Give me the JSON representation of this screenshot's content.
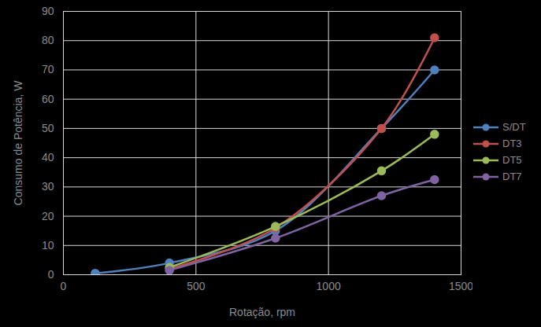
{
  "chart_data": {
    "type": "line",
    "x_label": "Rotação, rpm",
    "y_label": "Consumo de Potência, W",
    "x": [
      120,
      400,
      800,
      1200,
      1400
    ],
    "series": [
      {
        "name": "S/DT",
        "color": "#4f81bd",
        "values": [
          0.5,
          4,
          15,
          50,
          70
        ]
      },
      {
        "name": "DT3",
        "color": "#c0504d",
        "values": [
          null,
          2,
          16,
          50,
          81
        ]
      },
      {
        "name": "DT5",
        "color": "#9bbb59",
        "values": [
          null,
          2.5,
          16.5,
          35.5,
          48
        ]
      },
      {
        "name": "DT7",
        "color": "#8064a2",
        "values": [
          null,
          1.5,
          12.5,
          27,
          32.5
        ]
      }
    ],
    "xlim": [
      0,
      1500
    ],
    "xticks": [
      0,
      500,
      1000,
      1500
    ],
    "ylim": [
      0,
      90
    ],
    "yticks": [
      0,
      10,
      20,
      30,
      40,
      50,
      60,
      70,
      80,
      90
    ],
    "grid": true,
    "legend": "right",
    "marker": "circle",
    "line_style": "smooth"
  }
}
